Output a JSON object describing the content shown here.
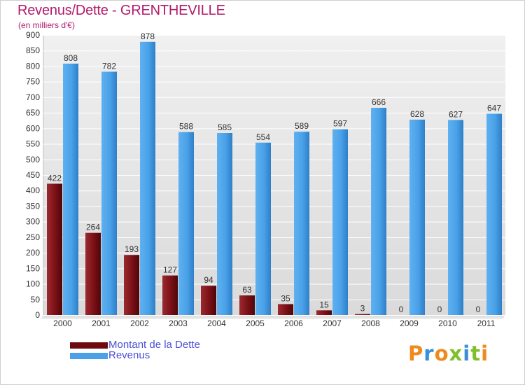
{
  "header": {
    "title": "Revenus/Dette - GRENTHEVILLE",
    "subtitle": "(en milliers d'€)"
  },
  "legend": {
    "items": [
      {
        "label": "Montant de la Dette",
        "color": "#6e0b0f"
      },
      {
        "label": "Revenus",
        "color": "#4aa1e8"
      }
    ]
  },
  "logo": {
    "text": "Proxiti",
    "letters": [
      "P",
      "r",
      "o",
      "x",
      "i",
      "t",
      "i"
    ],
    "colors": [
      "#f08a1c",
      "#3a8fd8",
      "#f08a1c",
      "#7fbf2a",
      "#3a8fd8",
      "#7fbf2a",
      "#f08a1c"
    ]
  },
  "chart_data": {
    "type": "bar",
    "title": "Revenus/Dette - GRENTHEVILLE",
    "ylabel": "(en milliers d'€)",
    "xlabel": "",
    "categories": [
      "2000",
      "2001",
      "2002",
      "2003",
      "2004",
      "2005",
      "2006",
      "2007",
      "2008",
      "2009",
      "2010",
      "2011"
    ],
    "series": [
      {
        "name": "Montant de la Dette",
        "values": [
          422,
          264,
          193,
          127,
          94,
          63,
          35,
          15,
          3,
          0,
          0,
          0
        ],
        "color": "#6e0b0f"
      },
      {
        "name": "Revenus",
        "values": [
          808,
          782,
          878,
          588,
          585,
          554,
          589,
          597,
          666,
          628,
          627,
          647
        ],
        "color": "#4aa1e8"
      }
    ],
    "ylim": [
      0,
      900
    ],
    "yticks": [
      0,
      50,
      100,
      150,
      200,
      250,
      300,
      350,
      400,
      450,
      500,
      550,
      600,
      650,
      700,
      750,
      800,
      850,
      900
    ],
    "grid": true,
    "legend_position": "bottom-left"
  }
}
